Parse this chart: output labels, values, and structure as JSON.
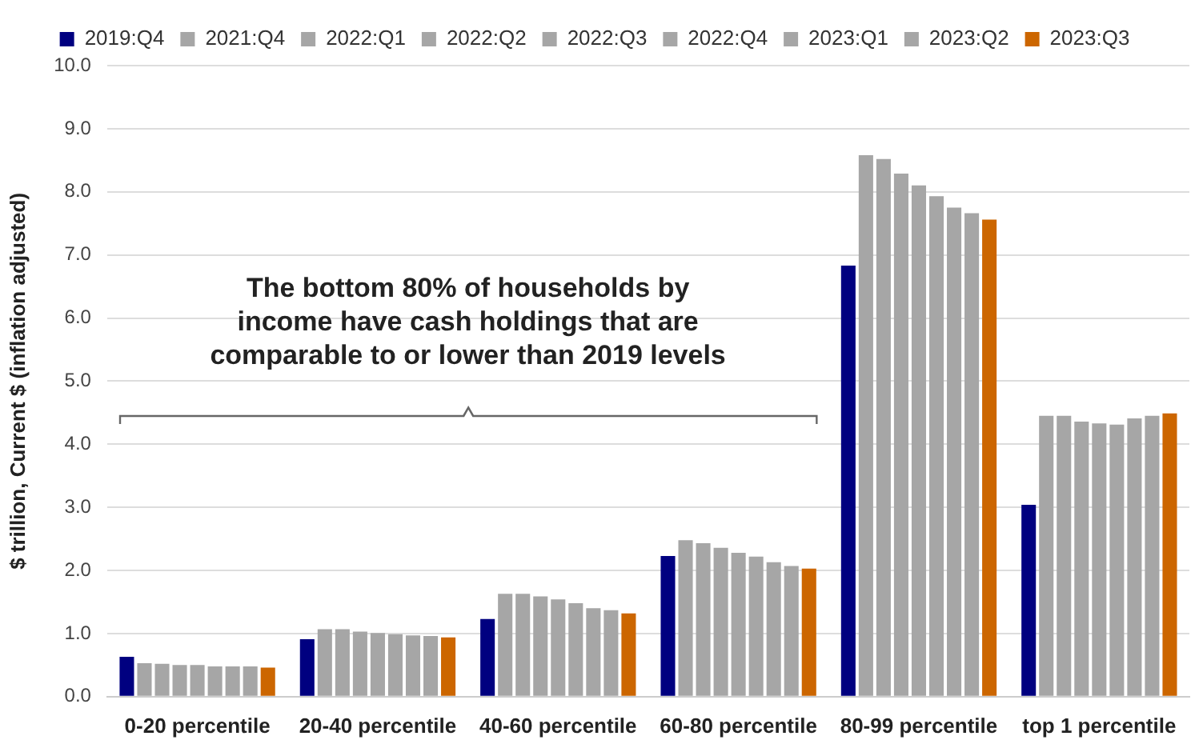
{
  "chart_data": {
    "type": "bar",
    "ylabel": "$ trillion, Current $ (inflation adjusted)",
    "categories": [
      "0-20 percentile",
      "20-40 percentile",
      "40-60 percentile",
      "60-80 percentile",
      "80-99 percentile",
      "top 1 percentile"
    ],
    "series": [
      {
        "name": "2019:Q4",
        "color": "#000080",
        "values": [
          0.63,
          0.91,
          1.23,
          2.23,
          6.83,
          3.04
        ]
      },
      {
        "name": "2021:Q4",
        "color": "#a6a6a6",
        "values": [
          0.53,
          1.07,
          1.63,
          2.48,
          8.58,
          4.45
        ]
      },
      {
        "name": "2022:Q1",
        "color": "#a6a6a6",
        "values": [
          0.52,
          1.07,
          1.63,
          2.43,
          8.52,
          4.45
        ]
      },
      {
        "name": "2022:Q2",
        "color": "#a6a6a6",
        "values": [
          0.5,
          1.03,
          1.59,
          2.36,
          8.29,
          4.36
        ]
      },
      {
        "name": "2022:Q3",
        "color": "#a6a6a6",
        "values": [
          0.5,
          1.01,
          1.54,
          2.28,
          8.1,
          4.33
        ]
      },
      {
        "name": "2022:Q4",
        "color": "#a6a6a6",
        "values": [
          0.48,
          0.99,
          1.48,
          2.22,
          7.93,
          4.31
        ]
      },
      {
        "name": "2023:Q1",
        "color": "#a6a6a6",
        "values": [
          0.48,
          0.97,
          1.4,
          2.13,
          7.75,
          4.41
        ]
      },
      {
        "name": "2023:Q2",
        "color": "#a6a6a6",
        "values": [
          0.48,
          0.96,
          1.37,
          2.07,
          7.66,
          4.45
        ]
      },
      {
        "name": "2023:Q3",
        "color": "#cc6600",
        "values": [
          0.46,
          0.94,
          1.32,
          2.03,
          7.56,
          4.49
        ]
      }
    ],
    "ylim": [
      0,
      10
    ],
    "yticks": [
      {
        "value": 0,
        "label": "0.0"
      },
      {
        "value": 1,
        "label": "1.0"
      },
      {
        "value": 2,
        "label": "2.0"
      },
      {
        "value": 3,
        "label": "3.0"
      },
      {
        "value": 4,
        "label": "4.0"
      },
      {
        "value": 5,
        "label": "5.0"
      },
      {
        "value": 6,
        "label": "6.0"
      },
      {
        "value": 7,
        "label": "7.0"
      },
      {
        "value": 8,
        "label": "8.0"
      },
      {
        "value": 9,
        "label": "9.0"
      },
      {
        "value": 10,
        "label": "10.0"
      }
    ],
    "grid": "y",
    "legend": "top",
    "annotations": [
      "The bottom 80% of households by income have cash holdings that are comparable to or lower than 2019 levels"
    ]
  }
}
